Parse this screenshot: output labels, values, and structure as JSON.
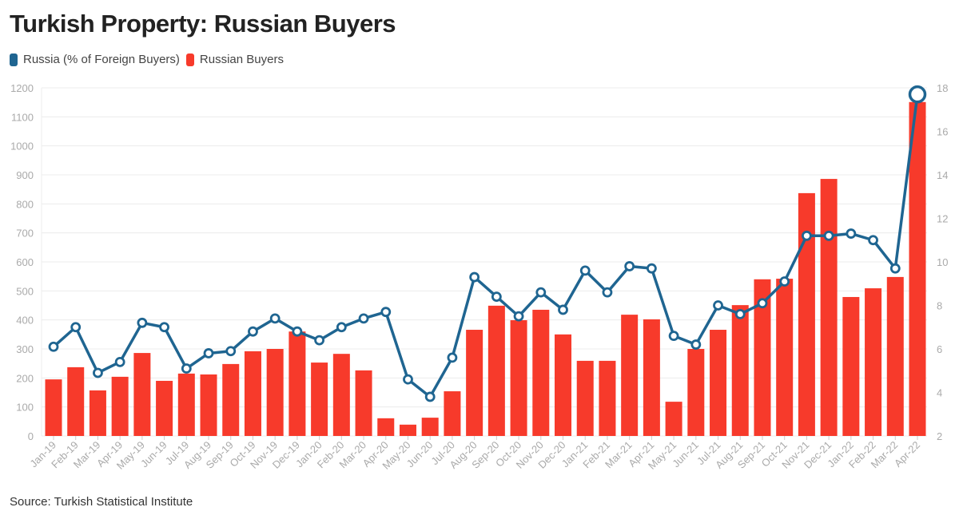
{
  "chart_data": {
    "type": "bar+line",
    "title": "Turkish Property: Russian Buyers",
    "source": "Source: Turkish Statistical Institute",
    "legend_placement": "top-left",
    "grid": true,
    "categories": [
      "Jan-19",
      "Feb-19",
      "Mar-19",
      "Apr-19",
      "May-19",
      "Jun-19",
      "Jul-19",
      "Aug-19",
      "Sep-19",
      "Oct-19",
      "Nov-19",
      "Dec-19",
      "Jan-20",
      "Feb-20",
      "Mar-20",
      "Apr-20",
      "May-20",
      "Jun-20",
      "Jul-20",
      "Aug-20",
      "Sep-20",
      "Oct-20",
      "Nov-20",
      "Dec-20",
      "Jan-21",
      "Feb-21",
      "Mar-21",
      "Apr-21",
      "May-21",
      "Jun-21",
      "Jul-21",
      "Aug-21",
      "Sep-21",
      "Oct-21",
      "Nov-21",
      "Dec-21",
      "Jan-22",
      "Feb-22",
      "Mar-22",
      "Apr-22"
    ],
    "series": [
      {
        "name": "Russia (% of Foreign Buyers)",
        "type": "line",
        "axis": "right",
        "color": "#1f6591",
        "values": [
          6.1,
          7.0,
          4.9,
          5.4,
          7.2,
          7.0,
          5.1,
          5.8,
          5.9,
          6.8,
          7.4,
          6.8,
          6.4,
          7.0,
          7.4,
          7.7,
          4.6,
          3.8,
          5.6,
          9.3,
          8.4,
          7.5,
          8.6,
          7.8,
          9.6,
          8.6,
          9.8,
          9.7,
          6.6,
          6.2,
          8.0,
          7.6,
          8.1,
          9.1,
          11.2,
          11.2,
          11.3,
          11.0,
          9.7,
          17.7
        ]
      },
      {
        "name": "Russian Buyers",
        "type": "bar",
        "axis": "left",
        "color": "#f73a2b",
        "values": [
          195,
          237,
          157,
          204,
          286,
          190,
          215,
          212,
          248,
          292,
          300,
          360,
          253,
          283,
          226,
          61,
          39,
          63,
          154,
          366,
          449,
          399,
          435,
          350,
          259,
          259,
          418,
          402,
          118,
          300,
          366,
          451,
          540,
          542,
          837,
          886,
          479,
          509,
          548,
          1151
        ]
      }
    ],
    "y_left": {
      "range": [
        0,
        1200
      ],
      "ticks": [
        0,
        100,
        200,
        300,
        400,
        500,
        600,
        700,
        800,
        900,
        1000,
        1100,
        1200
      ]
    },
    "y_right": {
      "range": [
        2,
        18
      ],
      "ticks": [
        2,
        4,
        6,
        8,
        10,
        12,
        14,
        16,
        18
      ]
    }
  }
}
